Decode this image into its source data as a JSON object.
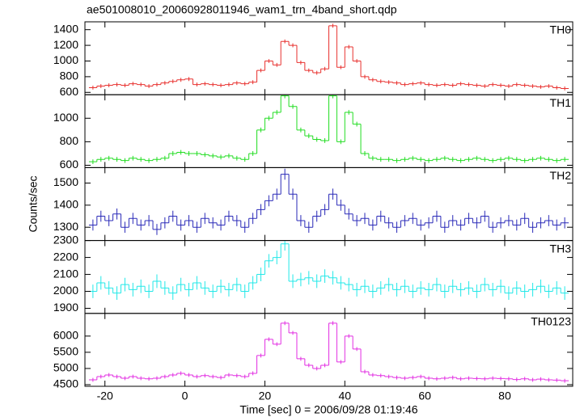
{
  "chart_data": [
    {
      "type": "step",
      "title": "ae501008010_20060928011946_wam1_trn_4band_short.qdp",
      "x": [
        -23,
        -21,
        -19,
        -17,
        -15,
        -13,
        -11,
        -9,
        -7,
        -5,
        -3,
        -1,
        1,
        3,
        5,
        7,
        9,
        11,
        13,
        15,
        17,
        19,
        21,
        23,
        25,
        27,
        29,
        31,
        33,
        35,
        37,
        39,
        41,
        43,
        45,
        47,
        49,
        51,
        53,
        55,
        57,
        59,
        61,
        63,
        65,
        67,
        69,
        71,
        73,
        75,
        77,
        79,
        81,
        83,
        85,
        87,
        89,
        91,
        93,
        95
      ],
      "bin_width": 2,
      "xlim": [
        -25,
        97
      ],
      "xticks": [
        -20,
        0,
        20,
        40,
        60,
        80
      ],
      "ylim": [
        570,
        1500
      ],
      "yticks": [
        600,
        800,
        1000,
        1200,
        1400
      ],
      "series": [
        {
          "name": "TH0",
          "color": "#e8302e",
          "error": 25,
          "values": [
            660,
            680,
            690,
            700,
            690,
            710,
            700,
            680,
            700,
            720,
            740,
            760,
            770,
            700,
            710,
            700,
            690,
            700,
            720,
            710,
            730,
            880,
            1000,
            950,
            1250,
            1200,
            980,
            880,
            850,
            900,
            1450,
            920,
            1180,
            1000,
            800,
            760,
            740,
            730,
            720,
            700,
            710,
            720,
            700,
            690,
            700,
            690,
            710,
            700,
            690,
            680,
            700,
            690,
            680,
            700,
            690,
            680,
            670,
            680,
            660,
            650
          ]
        }
      ]
    },
    {
      "type": "step",
      "x": [
        -23,
        -21,
        -19,
        -17,
        -15,
        -13,
        -11,
        -9,
        -7,
        -5,
        -3,
        -1,
        1,
        3,
        5,
        7,
        9,
        11,
        13,
        15,
        17,
        19,
        21,
        23,
        25,
        27,
        29,
        31,
        33,
        35,
        37,
        39,
        41,
        43,
        45,
        47,
        49,
        51,
        53,
        55,
        57,
        59,
        61,
        63,
        65,
        67,
        69,
        71,
        73,
        75,
        77,
        79,
        81,
        83,
        85,
        87,
        89,
        91,
        93,
        95
      ],
      "bin_width": 2,
      "xlim": [
        -25,
        97
      ],
      "xticks": [
        -20,
        0,
        20,
        40,
        60,
        80
      ],
      "ylim": [
        580,
        1200
      ],
      "yticks": [
        600,
        800,
        1000
      ],
      "series": [
        {
          "name": "TH1",
          "color": "#22dd22",
          "error": 20,
          "values": [
            630,
            650,
            660,
            650,
            640,
            660,
            650,
            640,
            650,
            660,
            700,
            710,
            700,
            700,
            690,
            680,
            670,
            680,
            660,
            650,
            700,
            900,
            1000,
            1050,
            1190,
            1100,
            900,
            850,
            820,
            810,
            1190,
            800,
            1050,
            950,
            700,
            660,
            650,
            650,
            640,
            650,
            660,
            650,
            640,
            650,
            660,
            650,
            640,
            650,
            660,
            650,
            640,
            650,
            660,
            650,
            640,
            650,
            660,
            650,
            640,
            650
          ]
        }
      ]
    },
    {
      "type": "step",
      "ylabel": "Counts/sec",
      "x": [
        -23,
        -21,
        -19,
        -17,
        -15,
        -13,
        -11,
        -9,
        -7,
        -5,
        -3,
        -1,
        1,
        3,
        5,
        7,
        9,
        11,
        13,
        15,
        17,
        19,
        21,
        23,
        25,
        27,
        29,
        31,
        33,
        35,
        37,
        39,
        41,
        43,
        45,
        47,
        49,
        51,
        53,
        55,
        57,
        59,
        61,
        63,
        65,
        67,
        69,
        71,
        73,
        75,
        77,
        79,
        81,
        83,
        85,
        87,
        89,
        91,
        93,
        95
      ],
      "bin_width": 2,
      "xlim": [
        -25,
        97
      ],
      "xticks": [
        -20,
        0,
        20,
        40,
        60,
        80
      ],
      "ylim": [
        1240,
        1570
      ],
      "yticks": [
        1300,
        1400,
        1500
      ],
      "series": [
        {
          "name": "TH2",
          "color": "#2a2ab8",
          "error": 25,
          "values": [
            1310,
            1350,
            1330,
            1360,
            1300,
            1340,
            1310,
            1330,
            1290,
            1320,
            1350,
            1310,
            1330,
            1300,
            1340,
            1320,
            1310,
            1350,
            1330,
            1300,
            1340,
            1380,
            1420,
            1450,
            1540,
            1450,
            1330,
            1300,
            1350,
            1380,
            1450,
            1400,
            1360,
            1330,
            1340,
            1310,
            1350,
            1320,
            1300,
            1330,
            1340,
            1310,
            1320,
            1350,
            1300,
            1330,
            1310,
            1340,
            1320,
            1350,
            1300,
            1320,
            1330,
            1310,
            1340,
            1300,
            1320,
            1330,
            1310,
            1320
          ]
        }
      ]
    },
    {
      "type": "step",
      "x": [
        -23,
        -21,
        -19,
        -17,
        -15,
        -13,
        -11,
        -9,
        -7,
        -5,
        -3,
        -1,
        1,
        3,
        5,
        7,
        9,
        11,
        13,
        15,
        17,
        19,
        21,
        23,
        25,
        27,
        29,
        31,
        33,
        35,
        37,
        39,
        41,
        43,
        45,
        47,
        49,
        51,
        53,
        55,
        57,
        59,
        61,
        63,
        65,
        67,
        69,
        71,
        73,
        75,
        77,
        79,
        81,
        83,
        85,
        87,
        89,
        91,
        93,
        95
      ],
      "bin_width": 2,
      "xlim": [
        -25,
        97
      ],
      "xticks": [
        -20,
        0,
        20,
        40,
        60,
        80
      ],
      "ylim": [
        1870,
        2300
      ],
      "yticks": [
        1900,
        2000,
        2100,
        2200,
        2300
      ],
      "series": [
        {
          "name": "TH3",
          "color": "#22e8e8",
          "error": 40,
          "values": [
            2000,
            2050,
            2020,
            1990,
            2040,
            2010,
            2030,
            2000,
            2060,
            2020,
            1990,
            2040,
            2010,
            2050,
            2020,
            2000,
            2030,
            2010,
            2040,
            2000,
            2050,
            2100,
            2180,
            2200,
            2280,
            2060,
            2070,
            2080,
            2060,
            2090,
            2080,
            2050,
            2040,
            2010,
            2030,
            2000,
            2020,
            2040,
            2010,
            2030,
            2000,
            2020,
            2010,
            2040,
            2000,
            2030,
            2010,
            2020,
            2000,
            2040,
            2010,
            2030,
            1990,
            2020,
            2000,
            2010,
            2030,
            2000,
            2020,
            1990
          ]
        }
      ]
    },
    {
      "type": "step",
      "xlabel": "Time [sec] 0 = 2006/09/28 01:19:46",
      "x": [
        -23,
        -21,
        -19,
        -17,
        -15,
        -13,
        -11,
        -9,
        -7,
        -5,
        -3,
        -1,
        1,
        3,
        5,
        7,
        9,
        11,
        13,
        15,
        17,
        19,
        21,
        23,
        25,
        27,
        29,
        31,
        33,
        35,
        37,
        39,
        41,
        43,
        45,
        47,
        49,
        51,
        53,
        55,
        57,
        59,
        61,
        63,
        65,
        67,
        69,
        71,
        73,
        75,
        77,
        79,
        81,
        83,
        85,
        87,
        89,
        91,
        93,
        95
      ],
      "bin_width": 2,
      "xlim": [
        -25,
        97
      ],
      "xticks": [
        -20,
        0,
        20,
        40,
        60,
        80
      ],
      "ylim": [
        4450,
        6700
      ],
      "yticks": [
        4500,
        5000,
        5500,
        6000
      ],
      "series": [
        {
          "name": "TH0123",
          "color": "#e22ee2",
          "error": 60,
          "values": [
            4650,
            4750,
            4800,
            4750,
            4700,
            4750,
            4700,
            4680,
            4700,
            4750,
            4800,
            4850,
            4800,
            4750,
            4780,
            4750,
            4720,
            4800,
            4780,
            4750,
            4850,
            5400,
            5900,
            5750,
            6400,
            6100,
            5300,
            5100,
            5000,
            5100,
            6400,
            5200,
            6000,
            5600,
            4900,
            4800,
            4780,
            4750,
            4720,
            4700,
            4720,
            4750,
            4700,
            4680,
            4700,
            4720,
            4680,
            4700,
            4690,
            4680,
            4700,
            4690,
            4680,
            4660,
            4680,
            4650,
            4670,
            4650,
            4640,
            4620
          ]
        }
      ]
    }
  ]
}
